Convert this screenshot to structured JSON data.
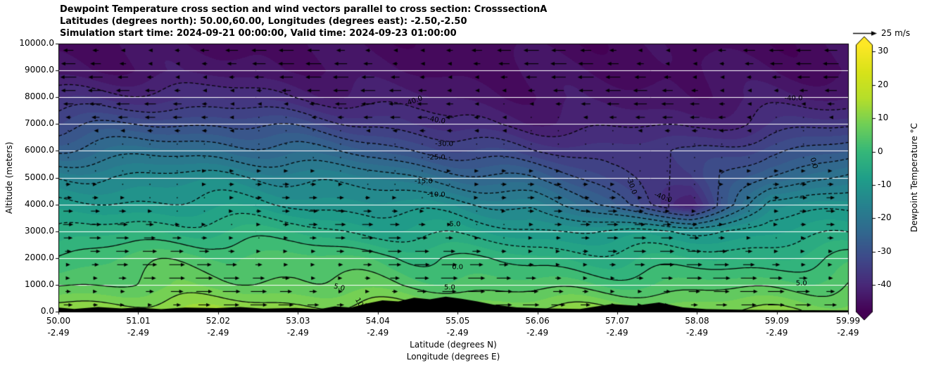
{
  "title": {
    "line1": "Dewpoint Temperature cross section and wind vectors parallel to cross section: CrosssectionA",
    "line2": "Latitudes (degrees north): 50.00,60.00, Longitudes (degrees east): -2.50,-2.50",
    "line3": "Simulation start time: 2024-09-21 00:00:00, Valid time: 2024-09-23 01:00:00"
  },
  "axes": {
    "y_label": "Altitude (meters)",
    "x_label_line1": "Latitude (degrees N)",
    "x_label_line2": "Longitude (degrees E)",
    "y_ticks": [
      "0.0",
      "1000.0",
      "2000.0",
      "3000.0",
      "4000.0",
      "5000.0",
      "6000.0",
      "7000.0",
      "8000.0",
      "9000.0",
      "10000.0"
    ],
    "x_ticks": [
      {
        "lat": "50.00",
        "lon": "-2.49"
      },
      {
        "lat": "51.01",
        "lon": "-2.49"
      },
      {
        "lat": "52.02",
        "lon": "-2.49"
      },
      {
        "lat": "53.03",
        "lon": "-2.49"
      },
      {
        "lat": "54.04",
        "lon": "-2.49"
      },
      {
        "lat": "55.05",
        "lon": "-2.49"
      },
      {
        "lat": "56.06",
        "lon": "-2.49"
      },
      {
        "lat": "57.07",
        "lon": "-2.49"
      },
      {
        "lat": "58.08",
        "lon": "-2.49"
      },
      {
        "lat": "59.09",
        "lon": "-2.49"
      },
      {
        "lat": "59.99",
        "lon": "-2.49"
      }
    ],
    "x_range": [
      50.0,
      59.99
    ],
    "y_range": [
      0,
      10000
    ]
  },
  "quiver_key": {
    "label": "25 m/s"
  },
  "colorbar": {
    "label": "Dewpoint Temperature °C",
    "ticks": [
      "30",
      "20",
      "10",
      "0",
      "-10",
      "-20",
      "-30",
      "-40"
    ],
    "vmin": -48,
    "vmax": 32,
    "colormap": "viridis",
    "stops": [
      [
        0.0,
        "#440154"
      ],
      [
        0.1,
        "#482878"
      ],
      [
        0.2,
        "#3e4989"
      ],
      [
        0.3,
        "#31688e"
      ],
      [
        0.4,
        "#26828e"
      ],
      [
        0.5,
        "#1f9e89"
      ],
      [
        0.6,
        "#35b779"
      ],
      [
        0.7,
        "#6ece58"
      ],
      [
        0.8,
        "#b5de2b"
      ],
      [
        0.9,
        "#d8e219"
      ],
      [
        1.0,
        "#fde725"
      ]
    ]
  },
  "chart_data": {
    "type": "heatmap",
    "x_name": "latitude_degrees_north",
    "y_name": "altitude_meters",
    "x": [
      50,
      51,
      52,
      53,
      54,
      55,
      56,
      57,
      58,
      59,
      60
    ],
    "y": [
      0,
      1000,
      2000,
      3000,
      4000,
      5000,
      6000,
      7000,
      8000,
      9000,
      10000
    ],
    "values": [
      [
        12,
        13,
        13,
        12,
        12,
        11,
        11,
        11,
        10,
        10,
        10
      ],
      [
        5,
        6,
        6,
        6,
        5,
        4,
        3,
        3,
        3,
        4,
        5
      ],
      [
        1,
        3,
        4,
        3,
        2,
        0,
        -2,
        -3,
        -3,
        -2,
        0
      ],
      [
        -5,
        -3,
        -2,
        -3,
        -6,
        -7,
        -9,
        -10,
        -10,
        -8,
        -6
      ],
      [
        -10,
        -9,
        -9,
        -10,
        -12,
        -13,
        -16,
        -28,
        -41,
        -14,
        -10
      ],
      [
        -15,
        -14,
        -14,
        -15,
        -18,
        -22,
        -26,
        -33,
        -36,
        -24,
        -18
      ],
      [
        -24,
        -22,
        -22,
        -24,
        -27,
        -32,
        -35,
        -36,
        -36,
        -30,
        -28
      ],
      [
        -32,
        -30,
        -30,
        -32,
        -35,
        -40,
        -41,
        -41,
        -41,
        -38,
        -36
      ],
      [
        -39,
        -38,
        -38,
        -40,
        -42,
        -43,
        -44,
        -44,
        -44,
        -43,
        -42
      ],
      [
        -44,
        -44,
        -44,
        -44,
        -45,
        -45,
        -45,
        -45,
        -45,
        -45,
        -45
      ],
      [
        -45,
        -45,
        -45,
        -45,
        -46,
        -46,
        -46,
        -46,
        -46,
        -46,
        -46
      ]
    ],
    "contour_levels": [
      -40,
      -35,
      -30,
      -25,
      -20,
      -15,
      -10,
      -5,
      0,
      5,
      10
    ],
    "contour_labels": [
      {
        "text": "-40.0",
        "lat": 54.5,
        "alt": 7850,
        "rot": -20
      },
      {
        "text": "-40.0",
        "lat": 54.78,
        "alt": 7150,
        "rot": 10
      },
      {
        "text": "-30.0",
        "lat": 54.88,
        "alt": 6250,
        "rot": 0
      },
      {
        "text": "-25.0",
        "lat": 54.78,
        "alt": 5750,
        "rot": 0
      },
      {
        "text": "-15.0",
        "lat": 54.62,
        "alt": 4850,
        "rot": 0
      },
      {
        "text": "-10.0",
        "lat": 54.78,
        "alt": 4350,
        "rot": 0
      },
      {
        "text": "-5.0",
        "lat": 55.0,
        "alt": 3250,
        "rot": 0
      },
      {
        "text": "0.0",
        "lat": 55.05,
        "alt": 1650,
        "rot": 0
      },
      {
        "text": "5.0",
        "lat": 53.55,
        "alt": 900,
        "rot": 15
      },
      {
        "text": "5.0",
        "lat": 54.95,
        "alt": 880,
        "rot": 0
      },
      {
        "text": "5.0",
        "lat": 59.4,
        "alt": 1050,
        "rot": 0
      },
      {
        "text": "10",
        "lat": 53.8,
        "alt": 330,
        "rot": 60
      },
      {
        "text": "-30.0",
        "lat": 57.25,
        "alt": 4700,
        "rot": 70
      },
      {
        "text": "-40.0",
        "lat": 57.65,
        "alt": 4250,
        "rot": 20
      },
      {
        "text": "0.0",
        "lat": 59.55,
        "alt": 5550,
        "rot": 75
      },
      {
        "text": "-40.0",
        "lat": 59.3,
        "alt": 7950,
        "rot": 0
      }
    ],
    "terrain_profile": [
      [
        50,
        150
      ],
      [
        50.2,
        100
      ],
      [
        50.5,
        170
      ],
      [
        50.8,
        120
      ],
      [
        51,
        150
      ],
      [
        51.3,
        90
      ],
      [
        51.6,
        150
      ],
      [
        52,
        130
      ],
      [
        52.3,
        170
      ],
      [
        52.6,
        110
      ],
      [
        53,
        140
      ],
      [
        53.3,
        90
      ],
      [
        53.5,
        200
      ],
      [
        53.7,
        150
      ],
      [
        53.9,
        300
      ],
      [
        54.1,
        420
      ],
      [
        54.3,
        380
      ],
      [
        54.5,
        520
      ],
      [
        54.7,
        460
      ],
      [
        54.9,
        560
      ],
      [
        55.1,
        480
      ],
      [
        55.3,
        380
      ],
      [
        55.5,
        260
      ],
      [
        55.8,
        160
      ],
      [
        56.2,
        120
      ],
      [
        56.6,
        100
      ],
      [
        57,
        280
      ],
      [
        57.3,
        220
      ],
      [
        57.6,
        340
      ],
      [
        57.9,
        160
      ],
      [
        58.2,
        90
      ],
      [
        58.6,
        70
      ],
      [
        59,
        60
      ],
      [
        59.5,
        50
      ],
      [
        60,
        45
      ]
    ],
    "wind_profile_u": [
      [
        0,
        0.55
      ],
      [
        1000,
        0.6
      ],
      [
        2000,
        0.5
      ],
      [
        3000,
        0.4
      ],
      [
        4000,
        0.3
      ],
      [
        5000,
        0.2
      ],
      [
        6000,
        0.05
      ],
      [
        6500,
        -0.1
      ],
      [
        7000,
        -0.3
      ],
      [
        8000,
        -0.5
      ],
      [
        9000,
        -0.55
      ],
      [
        10000,
        -0.5
      ]
    ],
    "wind_reference_ms": 25
  }
}
